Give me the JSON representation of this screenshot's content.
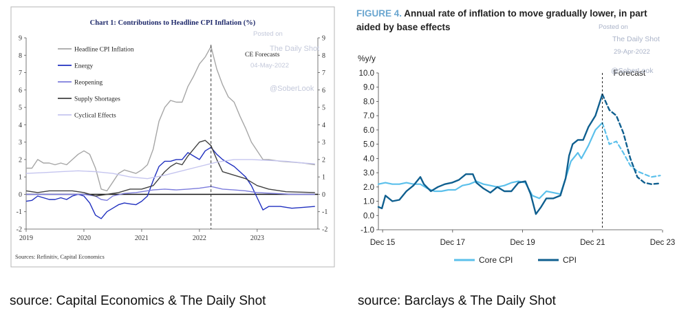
{
  "chart_data": [
    {
      "type": "line",
      "title": "Chart 1: Contributions to Headline CPI Inflation (%)",
      "ylim": [
        -2,
        9
      ],
      "yticks": [
        -2,
        -1,
        0,
        1,
        2,
        3,
        4,
        5,
        6,
        7,
        8,
        9
      ],
      "xlim": [
        2019.0,
        2024.05
      ],
      "xticks": [
        {
          "value": 2019,
          "label": "2019"
        },
        {
          "value": 2020,
          "label": "2020"
        },
        {
          "value": 2021,
          "label": "2021"
        },
        {
          "value": 2022,
          "label": "2022"
        },
        {
          "value": 2023,
          "label": "2023"
        }
      ],
      "forecast_x": 2022.2,
      "forecast_label": "CE Forecasts",
      "source_note": "Sources: Refinitiv, Capital Economics",
      "legend_position": "top-left",
      "watermark": {
        "line1": "Posted on",
        "line2": "The Daily Shot",
        "line3": "04-May-2022",
        "line4": "@SoberLook"
      },
      "series": [
        {
          "name": "Headline CPI Inflation",
          "color": "#a6a6a6",
          "width": 1.4,
          "x": [
            2019.0,
            2019.1,
            2019.2,
            2019.3,
            2019.4,
            2019.5,
            2019.6,
            2019.7,
            2019.8,
            2019.9,
            2020.0,
            2020.1,
            2020.2,
            2020.3,
            2020.4,
            2020.5,
            2020.6,
            2020.7,
            2020.8,
            2020.9,
            2021.0,
            2021.1,
            2021.2,
            2021.3,
            2021.4,
            2021.5,
            2021.6,
            2021.7,
            2021.8,
            2021.9,
            2022.0,
            2022.1,
            2022.2,
            2022.3,
            2022.4,
            2022.5,
            2022.6,
            2022.7,
            2022.8,
            2022.9,
            2023.0,
            2023.1,
            2023.2,
            2023.4,
            2023.6,
            2023.8,
            2024.0
          ],
          "y": [
            1.5,
            1.5,
            2.0,
            1.8,
            1.8,
            1.7,
            1.8,
            1.7,
            2.0,
            2.3,
            2.5,
            2.3,
            1.5,
            0.3,
            0.2,
            0.7,
            1.2,
            1.4,
            1.3,
            1.2,
            1.4,
            1.7,
            2.6,
            4.2,
            5.0,
            5.4,
            5.3,
            5.3,
            6.2,
            6.8,
            7.5,
            7.9,
            8.5,
            7.2,
            6.3,
            5.6,
            5.3,
            4.5,
            3.8,
            3.0,
            2.5,
            2.0,
            2.0,
            1.9,
            1.85,
            1.8,
            1.7
          ]
        },
        {
          "name": "Energy",
          "color": "#1f2fbf",
          "width": 1.4,
          "x": [
            2019.0,
            2019.1,
            2019.2,
            2019.3,
            2019.4,
            2019.5,
            2019.6,
            2019.7,
            2019.8,
            2019.9,
            2020.0,
            2020.1,
            2020.2,
            2020.3,
            2020.4,
            2020.5,
            2020.6,
            2020.7,
            2020.8,
            2020.9,
            2021.0,
            2021.1,
            2021.2,
            2021.3,
            2021.4,
            2021.5,
            2021.6,
            2021.7,
            2021.8,
            2021.9,
            2022.0,
            2022.1,
            2022.2,
            2022.3,
            2022.4,
            2022.5,
            2022.6,
            2022.7,
            2022.8,
            2022.9,
            2023.0,
            2023.1,
            2023.2,
            2023.4,
            2023.6,
            2023.8,
            2024.0
          ],
          "y": [
            -0.4,
            -0.35,
            -0.1,
            -0.2,
            -0.3,
            -0.3,
            -0.2,
            -0.3,
            -0.1,
            0.0,
            -0.1,
            -0.5,
            -1.2,
            -1.4,
            -1.0,
            -0.8,
            -0.6,
            -0.5,
            -0.55,
            -0.6,
            -0.4,
            -0.1,
            0.8,
            1.6,
            1.9,
            1.9,
            2.0,
            2.0,
            2.4,
            2.2,
            2.0,
            2.5,
            2.7,
            2.3,
            2.0,
            1.8,
            1.6,
            1.3,
            1.0,
            0.5,
            -0.2,
            -0.9,
            -0.7,
            -0.7,
            -0.8,
            -0.75,
            -0.7
          ]
        },
        {
          "name": "Reopening",
          "color": "#7b7bdc",
          "width": 1.4,
          "x": [
            2019.0,
            2019.3,
            2019.6,
            2019.9,
            2020.0,
            2020.2,
            2020.3,
            2020.4,
            2020.5,
            2020.7,
            2020.9,
            2021.0,
            2021.2,
            2021.4,
            2021.6,
            2021.8,
            2022.0,
            2022.2,
            2022.4,
            2022.6,
            2022.8,
            2023.0,
            2023.3,
            2023.6,
            2024.0
          ],
          "y": [
            0.0,
            0.0,
            0.0,
            0.0,
            0.0,
            -0.1,
            -0.3,
            -0.35,
            -0.1,
            0.05,
            0.1,
            0.15,
            0.25,
            0.3,
            0.25,
            0.3,
            0.35,
            0.45,
            0.3,
            0.25,
            0.2,
            0.1,
            0.05,
            0.0,
            0.0
          ]
        },
        {
          "name": "Supply Shortages",
          "color": "#404040",
          "width": 1.4,
          "x": [
            2019.0,
            2019.2,
            2019.4,
            2019.6,
            2019.8,
            2020.0,
            2020.2,
            2020.4,
            2020.6,
            2020.8,
            2021.0,
            2021.2,
            2021.3,
            2021.4,
            2021.5,
            2021.6,
            2021.7,
            2021.8,
            2021.9,
            2022.0,
            2022.1,
            2022.2,
            2022.3,
            2022.4,
            2022.6,
            2022.8,
            2023.0,
            2023.2,
            2023.5,
            2024.0
          ],
          "y": [
            0.2,
            0.1,
            0.2,
            0.2,
            0.2,
            0.1,
            -0.1,
            0.0,
            0.1,
            0.3,
            0.3,
            0.5,
            0.9,
            1.3,
            1.6,
            1.8,
            1.7,
            2.2,
            2.6,
            3.0,
            3.1,
            2.8,
            2.0,
            1.3,
            1.1,
            0.9,
            0.5,
            0.3,
            0.15,
            0.1
          ]
        },
        {
          "name": "Cyclical Effects",
          "color": "#c5c5ef",
          "width": 1.4,
          "x": [
            2019.0,
            2019.3,
            2019.6,
            2019.9,
            2020.2,
            2020.5,
            2020.8,
            2021.1,
            2021.4,
            2021.7,
            2022.0,
            2022.3,
            2022.6,
            2022.9,
            2023.2,
            2023.5,
            2023.8,
            2024.0
          ],
          "y": [
            1.2,
            1.25,
            1.3,
            1.35,
            1.3,
            1.2,
            1.0,
            0.9,
            1.1,
            1.35,
            1.6,
            1.85,
            2.0,
            2.0,
            1.95,
            1.9,
            1.8,
            1.75
          ]
        }
      ]
    },
    {
      "type": "line",
      "title_prefix": "FIGURE 4.",
      "title_line1": "Annual rate of inflation to move gradually lower, in part",
      "title_line2": "aided by base effects",
      "ylabel": "%y/y",
      "ylim": [
        -1.0,
        10.0
      ],
      "yticks": [
        "-1.0",
        "0.0",
        "1.0",
        "2.0",
        "3.0",
        "4.0",
        "5.0",
        "6.0",
        "7.0",
        "8.0",
        "9.0",
        "10.0"
      ],
      "xlim": [
        2015.8,
        2023.9
      ],
      "xticks": [
        {
          "value": 2015.92,
          "label": "Dec 15"
        },
        {
          "value": 2017.92,
          "label": "Dec 17"
        },
        {
          "value": 2019.92,
          "label": "Dec 19"
        },
        {
          "value": 2021.92,
          "label": "Dec 21"
        },
        {
          "value": 2023.92,
          "label": "Dec 23"
        }
      ],
      "forecast_x": 2022.2,
      "forecast_label": "Forecast",
      "legend_position": "bottom",
      "watermark": {
        "line1": "Posted on",
        "line2": "The Daily Shot",
        "line3": "29-Apr-2022",
        "line4": "@SoberLook"
      },
      "series": [
        {
          "name": "Core CPI",
          "color": "#5bc0eb",
          "width": 2.2,
          "x": [
            2015.8,
            2016.0,
            2016.2,
            2016.4,
            2016.6,
            2016.8,
            2017.0,
            2017.2,
            2017.4,
            2017.6,
            2017.8,
            2018.0,
            2018.2,
            2018.4,
            2018.6,
            2018.8,
            2019.0,
            2019.2,
            2019.4,
            2019.6,
            2019.8,
            2020.0,
            2020.2,
            2020.4,
            2020.6,
            2020.8,
            2021.0,
            2021.2,
            2021.3,
            2021.5,
            2021.6,
            2021.8,
            2022.0,
            2022.2
          ],
          "y": [
            2.2,
            2.3,
            2.2,
            2.2,
            2.3,
            2.2,
            2.2,
            1.9,
            1.7,
            1.7,
            1.8,
            1.8,
            2.1,
            2.2,
            2.4,
            2.2,
            2.1,
            2.0,
            2.1,
            2.3,
            2.4,
            2.3,
            1.4,
            1.2,
            1.7,
            1.6,
            1.5,
            3.0,
            3.8,
            4.4,
            4.0,
            4.9,
            6.0,
            6.5
          ]
        },
        {
          "name": "CPI",
          "color": "#0f5f8f",
          "width": 2.4,
          "x": [
            2015.8,
            2015.9,
            2016.0,
            2016.2,
            2016.4,
            2016.6,
            2016.8,
            2017.0,
            2017.1,
            2017.3,
            2017.5,
            2017.7,
            2017.9,
            2018.1,
            2018.3,
            2018.5,
            2018.6,
            2018.8,
            2019.0,
            2019.2,
            2019.4,
            2019.6,
            2019.8,
            2020.0,
            2020.15,
            2020.3,
            2020.45,
            2020.6,
            2020.8,
            2021.0,
            2021.15,
            2021.25,
            2021.35,
            2021.5,
            2021.65,
            2021.8,
            2022.0,
            2022.2
          ],
          "y": [
            0.6,
            0.5,
            1.4,
            1.0,
            1.1,
            1.7,
            2.1,
            2.7,
            2.2,
            1.7,
            2.0,
            2.2,
            2.3,
            2.5,
            2.9,
            2.9,
            2.3,
            1.9,
            1.6,
            2.0,
            1.7,
            1.7,
            2.3,
            2.4,
            1.5,
            0.1,
            0.6,
            1.2,
            1.2,
            1.4,
            2.6,
            4.2,
            5.0,
            5.3,
            5.3,
            6.2,
            7.0,
            8.5
          ]
        },
        {
          "name": "Core CPI forecast",
          "color": "#5bc0eb",
          "width": 2.2,
          "dashed": true,
          "x": [
            2022.2,
            2022.4,
            2022.6,
            2022.8,
            2023.0,
            2023.2,
            2023.4,
            2023.6,
            2023.85
          ],
          "y": [
            6.5,
            5.0,
            5.2,
            4.4,
            3.5,
            3.1,
            2.9,
            2.7,
            2.8
          ]
        },
        {
          "name": "CPI forecast",
          "color": "#0f5f8f",
          "width": 2.4,
          "dashed": true,
          "x": [
            2022.2,
            2022.4,
            2022.6,
            2022.8,
            2023.0,
            2023.2,
            2023.4,
            2023.6,
            2023.85
          ],
          "y": [
            8.5,
            7.4,
            7.0,
            5.8,
            4.0,
            2.7,
            2.3,
            2.2,
            2.25
          ]
        }
      ],
      "legend": [
        {
          "name": "Core CPI",
          "color": "#5bc0eb"
        },
        {
          "name": "CPI",
          "color": "#0f5f8f"
        }
      ]
    }
  ],
  "captions": {
    "left": "source: Capital Economics & The Daily Shot",
    "right": "source: Barclays & The Daily Shot"
  }
}
